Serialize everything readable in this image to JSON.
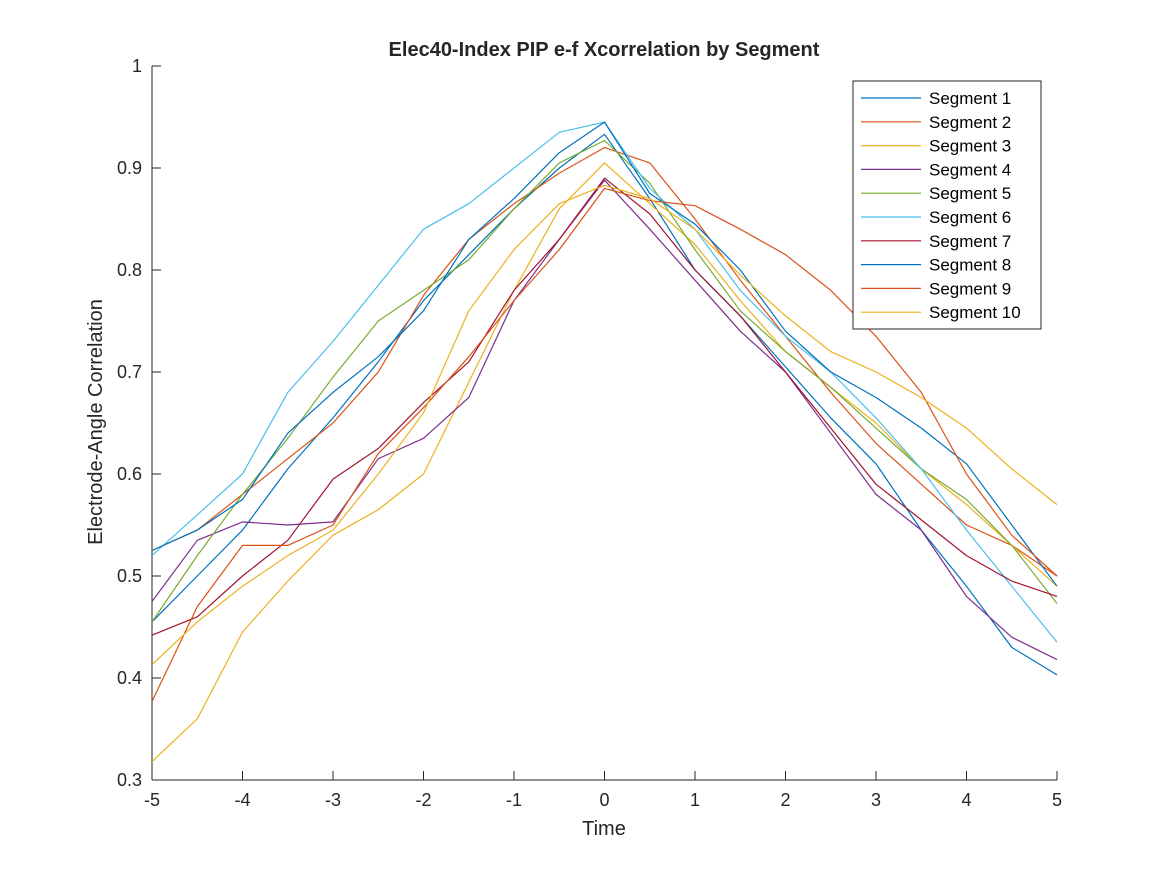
{
  "chart_data": {
    "type": "line",
    "title": "Elec40-Index PIP e-f Xcorrelation by Segment",
    "xlabel": "Time",
    "ylabel": "Electrode-Angle Correlation",
    "xlim": [
      -5,
      5
    ],
    "ylim": [
      0.3,
      1
    ],
    "xticks": [
      "-5",
      "-4",
      "-3",
      "-2",
      "-1",
      "0",
      "1",
      "2",
      "3",
      "4",
      "5"
    ],
    "yticks": [
      "0.3",
      "0.4",
      "0.5",
      "0.6",
      "0.7",
      "0.8",
      "0.9",
      "1"
    ],
    "legend_position": "top-right",
    "grid": false,
    "x": [
      -5,
      -4.5,
      -4,
      -3.5,
      -3,
      -2.5,
      -2,
      -1.5,
      -1,
      -0.5,
      0,
      0.5,
      1,
      1.5,
      2,
      2.5,
      3,
      3.5,
      4,
      4.5,
      5
    ],
    "series": [
      {
        "name": "Segment 1",
        "color": "#0072BD",
        "values": [
          0.455,
          0.5,
          0.545,
          0.605,
          0.655,
          0.71,
          0.77,
          0.815,
          0.86,
          0.9,
          0.933,
          0.87,
          0.8,
          0.755,
          0.705,
          0.655,
          0.61,
          0.545,
          0.49,
          0.43,
          0.403
        ]
      },
      {
        "name": "Segment 2",
        "color": "#D95319",
        "values": [
          0.525,
          0.545,
          0.58,
          0.615,
          0.65,
          0.7,
          0.775,
          0.83,
          0.865,
          0.895,
          0.92,
          0.905,
          0.85,
          0.79,
          0.735,
          0.68,
          0.63,
          0.59,
          0.55,
          0.53,
          0.5
        ]
      },
      {
        "name": "Segment 3",
        "color": "#EDB120",
        "values": [
          0.318,
          0.36,
          0.445,
          0.495,
          0.54,
          0.565,
          0.6,
          0.69,
          0.78,
          0.86,
          0.905,
          0.865,
          0.825,
          0.77,
          0.72,
          0.685,
          0.65,
          0.605,
          0.57,
          0.53,
          0.49
        ]
      },
      {
        "name": "Segment 4",
        "color": "#7E2F8E",
        "values": [
          0.475,
          0.535,
          0.553,
          0.55,
          0.553,
          0.615,
          0.635,
          0.675,
          0.77,
          0.83,
          0.888,
          0.84,
          0.79,
          0.74,
          0.7,
          0.64,
          0.58,
          0.545,
          0.48,
          0.44,
          0.418
        ]
      },
      {
        "name": "Segment 5",
        "color": "#77AC30",
        "values": [
          0.455,
          0.52,
          0.58,
          0.635,
          0.695,
          0.75,
          0.78,
          0.81,
          0.86,
          0.905,
          0.927,
          0.885,
          0.82,
          0.76,
          0.72,
          0.685,
          0.645,
          0.605,
          0.575,
          0.53,
          0.473
        ]
      },
      {
        "name": "Segment 6",
        "color": "#4DBEEE",
        "values": [
          0.52,
          0.56,
          0.6,
          0.68,
          0.73,
          0.785,
          0.84,
          0.865,
          0.9,
          0.935,
          0.945,
          0.88,
          0.84,
          0.78,
          0.735,
          0.7,
          0.655,
          0.605,
          0.545,
          0.49,
          0.435
        ]
      },
      {
        "name": "Segment 7",
        "color": "#A2142F",
        "values": [
          0.442,
          0.46,
          0.5,
          0.535,
          0.595,
          0.625,
          0.67,
          0.71,
          0.78,
          0.83,
          0.89,
          0.855,
          0.8,
          0.755,
          0.7,
          0.645,
          0.59,
          0.555,
          0.52,
          0.495,
          0.48
        ]
      },
      {
        "name": "Segment 8",
        "color": "#0072BD",
        "values": [
          0.525,
          0.545,
          0.575,
          0.64,
          0.68,
          0.715,
          0.76,
          0.83,
          0.87,
          0.915,
          0.945,
          0.875,
          0.845,
          0.8,
          0.74,
          0.7,
          0.675,
          0.645,
          0.61,
          0.55,
          0.49
        ]
      },
      {
        "name": "Segment 9",
        "color": "#D95319",
        "values": [
          0.377,
          0.47,
          0.53,
          0.53,
          0.55,
          0.62,
          0.665,
          0.715,
          0.77,
          0.82,
          0.88,
          0.868,
          0.863,
          0.84,
          0.815,
          0.78,
          0.735,
          0.68,
          0.6,
          0.54,
          0.5
        ]
      },
      {
        "name": "Segment 10",
        "color": "#EDB120",
        "values": [
          0.413,
          0.455,
          0.49,
          0.52,
          0.545,
          0.6,
          0.66,
          0.76,
          0.82,
          0.865,
          0.883,
          0.87,
          0.84,
          0.795,
          0.755,
          0.72,
          0.7,
          0.675,
          0.645,
          0.605,
          0.57
        ]
      }
    ]
  }
}
